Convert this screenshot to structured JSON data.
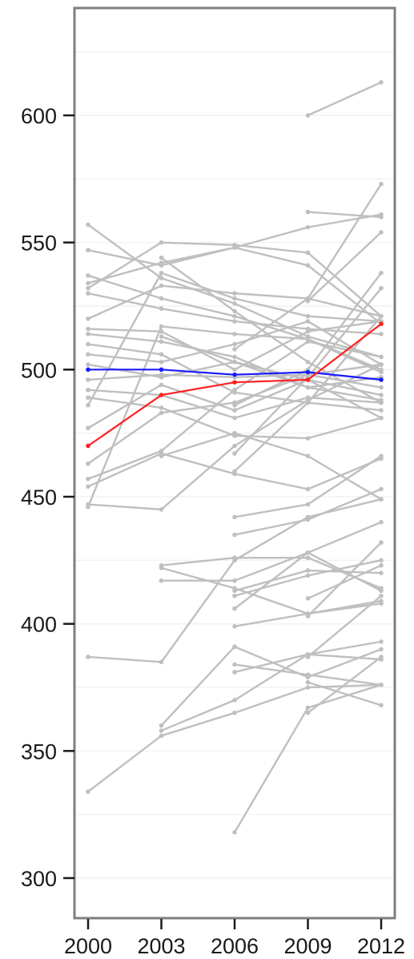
{
  "chart_data": {
    "type": "line",
    "title": "",
    "xlabel": "",
    "ylabel": "",
    "x": [
      2000,
      2003,
      2006,
      2009,
      2012
    ],
    "x_tick_labels": [
      "2000",
      "2003",
      "2006",
      "2009",
      "2012"
    ],
    "y_ticks": [
      300,
      350,
      400,
      450,
      500,
      550,
      600
    ],
    "y_tick_labels": [
      "300",
      "350",
      "400",
      "450",
      "500",
      "550",
      "600"
    ],
    "xlim": [
      1999.8,
      2012.6
    ],
    "ylim": [
      284,
      627
    ],
    "grid": true,
    "legend": "none",
    "colors": {
      "background_series": "#bfbfbf",
      "highlight_a": "#ff2020",
      "highlight_b": "#1a1aff",
      "frame": "#7f7f7f",
      "gridline": "#f2f2f2"
    },
    "series": [
      {
        "color": "#1a1aff",
        "values": [
          500,
          500,
          498,
          499,
          496
        ]
      },
      {
        "color": "#ff2020",
        "values": [
          470,
          490,
          495,
          496,
          518
        ]
      },
      {
        "values": [
          557,
          536,
          526,
          513,
          505
        ]
      },
      {
        "values": [
          547,
          541,
          548,
          541,
          518
        ]
      },
      {
        "values": [
          537,
          528,
          521,
          512,
          499
        ]
      },
      {
        "values": [
          534,
          542,
          548,
          556,
          561
        ]
      },
      {
        "values": [
          532,
          550,
          549,
          546,
          521
        ]
      },
      {
        "values": [
          530,
          524,
          519,
          516,
          514
        ]
      },
      {
        "values": [
          520,
          533,
          530,
          528,
          521
        ]
      },
      {
        "values": [
          516,
          515,
          500,
          515,
          519
        ]
      },
      {
        "values": [
          514,
          511,
          505,
          493,
          497
        ]
      },
      {
        "values": [
          510,
          506,
          491,
          487,
          484
        ]
      },
      {
        "values": [
          506,
          503,
          510,
          519,
          502
        ]
      },
      {
        "values": [
          502,
          497,
          503,
          493,
          488
        ]
      },
      {
        "values": [
          496,
          498,
          497,
          498,
          493
        ]
      },
      {
        "values": [
          492,
          490,
          481,
          489,
          487
        ]
      },
      {
        "values": [
          489,
          485,
          474,
          473,
          481
        ]
      },
      {
        "values": [
          486,
          538,
          528,
          521,
          519
        ]
      },
      {
        "values": [
          477,
          494,
          484,
          496,
          490
        ]
      },
      {
        "values": [
          463,
          483,
          487,
          498,
          502
        ]
      },
      {
        "values": [
          457,
          468,
          492,
          511,
          505
        ]
      },
      {
        "values": [
          454,
          467,
          459,
          453,
          465
        ]
      },
      {
        "values": [
          447,
          445,
          470,
          488,
          502
        ]
      },
      {
        "values": [
          446,
          517,
          514,
          512,
          500
        ]
      },
      {
        "values": [
          387,
          385,
          425,
          442,
          449
        ]
      },
      {
        "values": [
          334,
          356,
          365,
          375,
          376
        ]
      },
      {
        "values": [
          null,
          544,
          523,
          503,
          487
        ]
      },
      {
        "values": [
          null,
          513,
          503,
          496,
          481
        ]
      },
      {
        "values": [
          null,
          466,
          475,
          466,
          449
        ]
      },
      {
        "values": [
          null,
          423,
          426,
          426,
          414
        ]
      },
      {
        "values": [
          null,
          422,
          414,
          404,
          408
        ]
      },
      {
        "values": [
          null,
          417,
          417,
          428,
          413
        ]
      },
      {
        "values": [
          null,
          360,
          391,
          379,
          390
        ]
      },
      {
        "values": [
          null,
          358,
          370,
          388,
          393
        ]
      },
      {
        "values": [
          null,
          null,
          442,
          447,
          466
        ]
      },
      {
        "values": [
          null,
          null,
          435,
          441,
          453
        ]
      },
      {
        "values": [
          null,
          null,
          413,
          421,
          420
        ]
      },
      {
        "values": [
          null,
          null,
          411,
          419,
          425
        ]
      },
      {
        "values": [
          null,
          null,
          406,
          428,
          440
        ]
      },
      {
        "values": [
          null,
          null,
          399,
          404,
          409
        ]
      },
      {
        "values": [
          null,
          null,
          384,
          380,
          376
        ]
      },
      {
        "values": [
          null,
          null,
          381,
          388,
          386
        ]
      },
      {
        "values": [
          null,
          null,
          318,
          367,
          376
        ]
      },
      {
        "values": [
          null,
          null,
          460,
          487,
          521
        ]
      },
      {
        "values": [
          null,
          null,
          467,
          497,
          532
        ]
      },
      {
        "values": [
          null,
          null,
          486,
          500,
          538
        ]
      },
      {
        "values": [
          null,
          null,
          508,
          528,
          573
        ]
      },
      {
        "values": [
          null,
          null,
          null,
          600,
          613
        ]
      },
      {
        "values": [
          null,
          null,
          null,
          562,
          560
        ]
      },
      {
        "values": [
          null,
          null,
          null,
          527,
          554
        ]
      },
      {
        "values": [
          null,
          null,
          null,
          410,
          423
        ]
      },
      {
        "values": [
          null,
          null,
          null,
          387,
          411
        ]
      },
      {
        "values": [
          null,
          null,
          null,
          377,
          368
        ]
      },
      {
        "values": [
          null,
          null,
          null,
          365,
          387
        ]
      },
      {
        "values": [
          null,
          null,
          null,
          403,
          432
        ]
      }
    ]
  }
}
